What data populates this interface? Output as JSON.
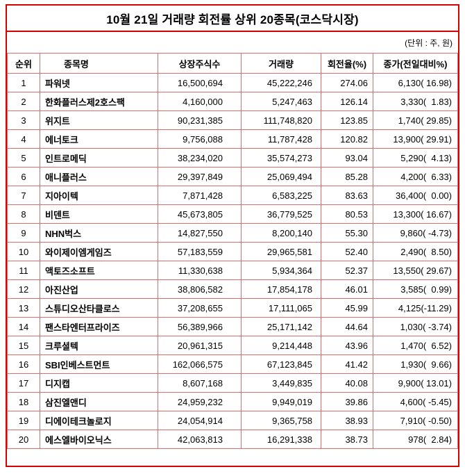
{
  "colors": {
    "outer_border": "#d50000",
    "grid_border": "#e26b6b",
    "text": "#000000",
    "background": "#ffffff"
  },
  "chart_data": {
    "type": "table",
    "title": "10월 21일 거래량 회전률 상위 20종목(코스닥시장)",
    "unit_note": "(단위 : 주, 원)",
    "headers": [
      "순위",
      "종목명",
      "상장주식수",
      "거래량",
      "회전율(%)",
      "종가(전일대비%)"
    ],
    "rows": [
      {
        "rank": "1",
        "name": "파워넷",
        "listed_shares": "16,500,694",
        "volume": "45,222,246",
        "turnover_pct": "274.06",
        "close": "6,130",
        "change_pct": "16.98"
      },
      {
        "rank": "2",
        "name": "한화플러스제2호스팩",
        "listed_shares": "4,160,000",
        "volume": "5,247,463",
        "turnover_pct": "126.14",
        "close": "3,330",
        "change_pct": "1.83"
      },
      {
        "rank": "3",
        "name": "위지트",
        "listed_shares": "90,231,385",
        "volume": "111,748,820",
        "turnover_pct": "123.85",
        "close": "1,740",
        "change_pct": "29.85"
      },
      {
        "rank": "4",
        "name": "에너토크",
        "listed_shares": "9,756,088",
        "volume": "11,787,428",
        "turnover_pct": "120.82",
        "close": "13,900",
        "change_pct": "29.91"
      },
      {
        "rank": "5",
        "name": "인트로메딕",
        "listed_shares": "38,234,020",
        "volume": "35,574,273",
        "turnover_pct": "93.04",
        "close": "5,290",
        "change_pct": "4.13"
      },
      {
        "rank": "6",
        "name": "애니플러스",
        "listed_shares": "29,397,849",
        "volume": "25,069,494",
        "turnover_pct": "85.28",
        "close": "4,200",
        "change_pct": "6.33"
      },
      {
        "rank": "7",
        "name": "지아이텍",
        "listed_shares": "7,871,428",
        "volume": "6,583,225",
        "turnover_pct": "83.63",
        "close": "36,400",
        "change_pct": "0.00"
      },
      {
        "rank": "8",
        "name": "비덴트",
        "listed_shares": "45,673,805",
        "volume": "36,779,525",
        "turnover_pct": "80.53",
        "close": "13,300",
        "change_pct": "16.67"
      },
      {
        "rank": "9",
        "name": "NHN벅스",
        "listed_shares": "14,827,550",
        "volume": "8,200,140",
        "turnover_pct": "55.30",
        "close": "9,860",
        "change_pct": "-4.73"
      },
      {
        "rank": "10",
        "name": "와이제이엠게임즈",
        "listed_shares": "57,183,559",
        "volume": "29,965,581",
        "turnover_pct": "52.40",
        "close": "2,490",
        "change_pct": "8.50"
      },
      {
        "rank": "11",
        "name": "액토즈소프트",
        "listed_shares": "11,330,638",
        "volume": "5,934,364",
        "turnover_pct": "52.37",
        "close": "13,550",
        "change_pct": "29.67"
      },
      {
        "rank": "12",
        "name": "아진산업",
        "listed_shares": "38,806,582",
        "volume": "17,854,178",
        "turnover_pct": "46.01",
        "close": "3,585",
        "change_pct": "0.99"
      },
      {
        "rank": "13",
        "name": "스튜디오산타클로스",
        "listed_shares": "37,208,655",
        "volume": "17,111,065",
        "turnover_pct": "45.99",
        "close": "4,125",
        "change_pct": "-11.29"
      },
      {
        "rank": "14",
        "name": "팬스타엔터프라이즈",
        "listed_shares": "56,389,966",
        "volume": "25,171,142",
        "turnover_pct": "44.64",
        "close": "1,030",
        "change_pct": "-3.74"
      },
      {
        "rank": "15",
        "name": "크루셜텍",
        "listed_shares": "20,961,315",
        "volume": "9,214,448",
        "turnover_pct": "43.96",
        "close": "1,470",
        "change_pct": "6.52"
      },
      {
        "rank": "16",
        "name": "SBI인베스트먼트",
        "listed_shares": "162,066,575",
        "volume": "67,123,845",
        "turnover_pct": "41.42",
        "close": "1,930",
        "change_pct": "9.66"
      },
      {
        "rank": "17",
        "name": "디지캡",
        "listed_shares": "8,607,168",
        "volume": "3,449,835",
        "turnover_pct": "40.08",
        "close": "9,900",
        "change_pct": "13.01"
      },
      {
        "rank": "18",
        "name": "삼진엘앤디",
        "listed_shares": "24,959,232",
        "volume": "9,949,019",
        "turnover_pct": "39.86",
        "close": "4,600",
        "change_pct": "-5.45"
      },
      {
        "rank": "19",
        "name": "디에이테크놀로지",
        "listed_shares": "24,054,914",
        "volume": "9,365,758",
        "turnover_pct": "38.93",
        "close": "7,910",
        "change_pct": "-0.50"
      },
      {
        "rank": "20",
        "name": "에스엘바이오닉스",
        "listed_shares": "42,063,813",
        "volume": "16,291,338",
        "turnover_pct": "38.73",
        "close": "978",
        "change_pct": "2.84"
      }
    ]
  }
}
